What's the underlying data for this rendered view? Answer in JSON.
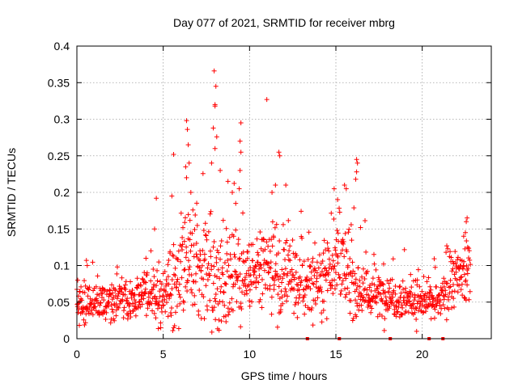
{
  "chart_data": {
    "type": "scatter",
    "title": "Day 077 of 2021, SRMTID for receiver mbrg",
    "xlabel": "GPS time / hours",
    "ylabel": "SRMTID / TECUs",
    "xlim": [
      0,
      24
    ],
    "ylim": [
      0,
      0.4
    ],
    "x_ticks": [
      0,
      5,
      10,
      15,
      20
    ],
    "x_tick_labels": [
      "0",
      "5",
      "10",
      "15",
      "20"
    ],
    "y_ticks": [
      0,
      0.05,
      0.1,
      0.15,
      0.2,
      0.25,
      0.3,
      0.35,
      0.4
    ],
    "y_tick_labels": [
      "0",
      "0.05",
      "0.1",
      "0.15",
      "0.2",
      "0.25",
      "0.3",
      "0.35",
      "0.4"
    ],
    "grid": true,
    "marker": "plus",
    "series_color": "#ff0000",
    "profile": [
      [
        0,
        0.045,
        0.015
      ],
      [
        1,
        0.048,
        0.015
      ],
      [
        2,
        0.05,
        0.015
      ],
      [
        3,
        0.05,
        0.015
      ],
      [
        4,
        0.07,
        0.02
      ],
      [
        5,
        0.05,
        0.025
      ],
      [
        6,
        0.085,
        0.04
      ],
      [
        7,
        0.1,
        0.045
      ],
      [
        8,
        0.09,
        0.05
      ],
      [
        9,
        0.09,
        0.045
      ],
      [
        10,
        0.085,
        0.03
      ],
      [
        11,
        0.09,
        0.035
      ],
      [
        12,
        0.085,
        0.035
      ],
      [
        13,
        0.07,
        0.025
      ],
      [
        14,
        0.08,
        0.03
      ],
      [
        15,
        0.11,
        0.035
      ],
      [
        16,
        0.075,
        0.03
      ],
      [
        17,
        0.06,
        0.02
      ],
      [
        18,
        0.06,
        0.02
      ],
      [
        19,
        0.055,
        0.018
      ],
      [
        20,
        0.05,
        0.018
      ],
      [
        21,
        0.05,
        0.015
      ],
      [
        22,
        0.085,
        0.025
      ],
      [
        22.8,
        0.09,
        0.03
      ]
    ],
    "n_points": 1300,
    "outliers": [
      [
        7.95,
        0.366
      ],
      [
        8.05,
        0.345
      ],
      [
        8.0,
        0.32
      ],
      [
        8.0,
        0.318
      ],
      [
        11.0,
        0.327
      ],
      [
        6.35,
        0.298
      ],
      [
        6.4,
        0.286
      ],
      [
        6.45,
        0.265
      ],
      [
        6.3,
        0.235
      ],
      [
        6.35,
        0.22
      ],
      [
        9.5,
        0.295
      ],
      [
        9.45,
        0.27
      ],
      [
        9.5,
        0.255
      ],
      [
        9.45,
        0.23
      ],
      [
        9.4,
        0.205
      ],
      [
        7.9,
        0.288
      ],
      [
        8.1,
        0.276
      ],
      [
        8.0,
        0.26
      ],
      [
        7.8,
        0.24
      ],
      [
        8.3,
        0.23
      ],
      [
        5.6,
        0.252
      ],
      [
        5.5,
        0.195
      ],
      [
        4.6,
        0.192
      ],
      [
        4.5,
        0.15
      ],
      [
        11.7,
        0.255
      ],
      [
        11.75,
        0.25
      ],
      [
        11.5,
        0.21
      ],
      [
        11.3,
        0.2
      ],
      [
        12.1,
        0.21
      ],
      [
        16.2,
        0.245
      ],
      [
        16.25,
        0.24
      ],
      [
        16.2,
        0.228
      ],
      [
        16.15,
        0.218
      ],
      [
        15.5,
        0.21
      ],
      [
        15.6,
        0.205
      ],
      [
        14.9,
        0.205
      ],
      [
        15.1,
        0.19
      ],
      [
        8.75,
        0.215
      ],
      [
        9.0,
        0.2
      ],
      [
        9.2,
        0.185
      ],
      [
        6.6,
        0.2
      ],
      [
        6.5,
        0.24
      ],
      [
        0.55,
        0.107
      ],
      [
        0.6,
        0.1
      ],
      [
        0.05,
        0.08
      ],
      [
        4.0,
        0.11
      ],
      [
        22.6,
        0.165
      ],
      [
        22.55,
        0.16
      ],
      [
        22.5,
        0.145
      ],
      [
        22.4,
        0.14
      ]
    ],
    "gap_markers": [
      13.35,
      15.2,
      18.15,
      20.4,
      21.2
    ]
  }
}
